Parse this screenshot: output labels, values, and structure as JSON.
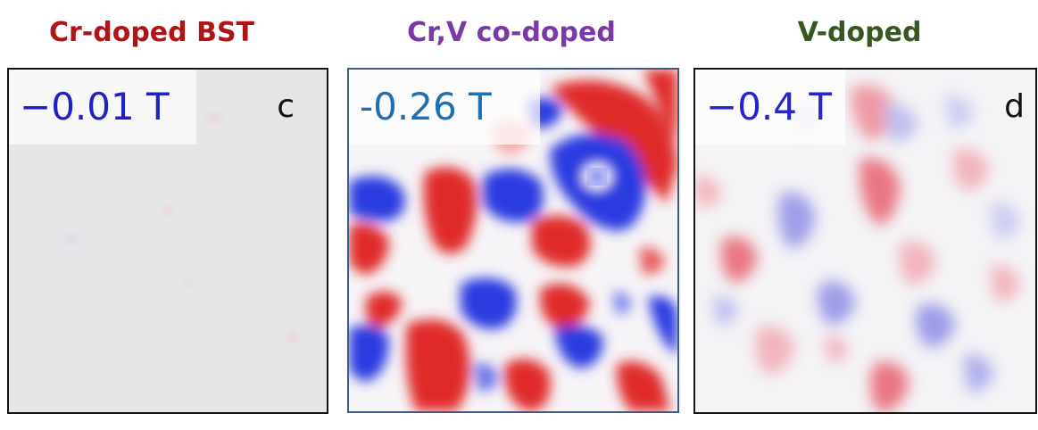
{
  "panels": [
    {
      "title": "Cr-doped BST",
      "field": "−0.01 T",
      "letter": "c",
      "title_color": "#b01414",
      "field_color": "#2020c8"
    },
    {
      "title": "Cr,V co-doped",
      "field": "-0.26 T",
      "letter": "",
      "title_color": "#7a3aa5",
      "field_color": "#1f6fb3"
    },
    {
      "title": "V-doped",
      "field": "−0.4 T",
      "letter": "d",
      "title_color": "#375623",
      "field_color": "#2525c8"
    }
  ],
  "colormap": {
    "positive": "#e02a2a",
    "negative": "#2a3ae0",
    "neutral": "#ffffff"
  }
}
